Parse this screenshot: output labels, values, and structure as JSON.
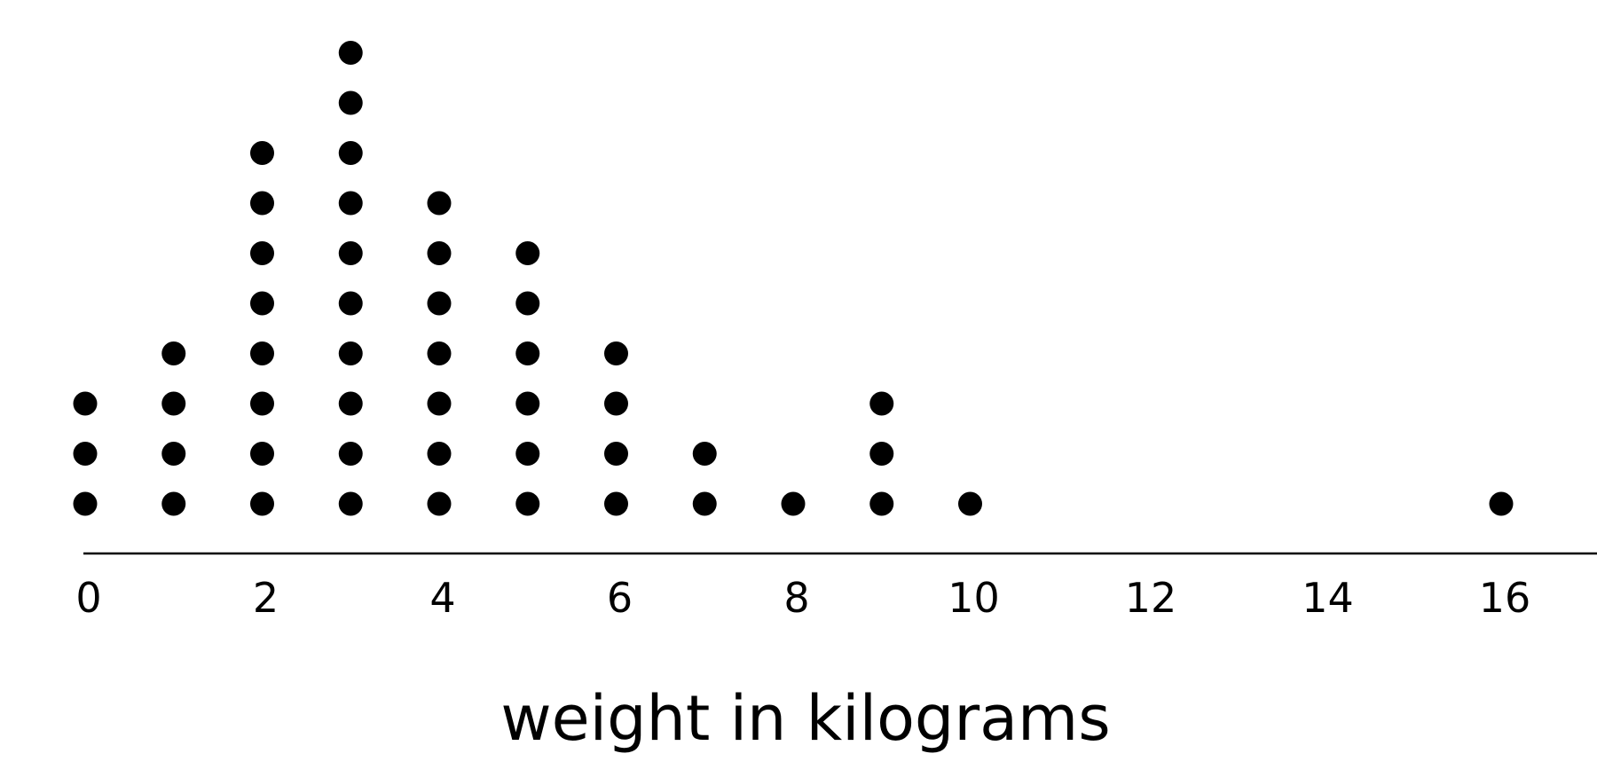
{
  "chart_data": {
    "type": "scatter",
    "subtype": "dot-plot",
    "title": "",
    "xlabel": "weight in kilograms",
    "ylabel": "",
    "xlim": [
      0,
      16
    ],
    "xticks": [
      0,
      2,
      4,
      6,
      8,
      10,
      12,
      14,
      16
    ],
    "grid": false,
    "legend": "none",
    "dot_color": "#000000",
    "axis_color": "#000000",
    "counts": [
      {
        "x": 0,
        "count": 3
      },
      {
        "x": 1,
        "count": 4
      },
      {
        "x": 2,
        "count": 8
      },
      {
        "x": 3,
        "count": 10
      },
      {
        "x": 4,
        "count": 7
      },
      {
        "x": 5,
        "count": 6
      },
      {
        "x": 6,
        "count": 4
      },
      {
        "x": 7,
        "count": 2
      },
      {
        "x": 8,
        "count": 1
      },
      {
        "x": 9,
        "count": 3
      },
      {
        "x": 10,
        "count": 1
      },
      {
        "x": 16,
        "count": 1
      }
    ]
  }
}
